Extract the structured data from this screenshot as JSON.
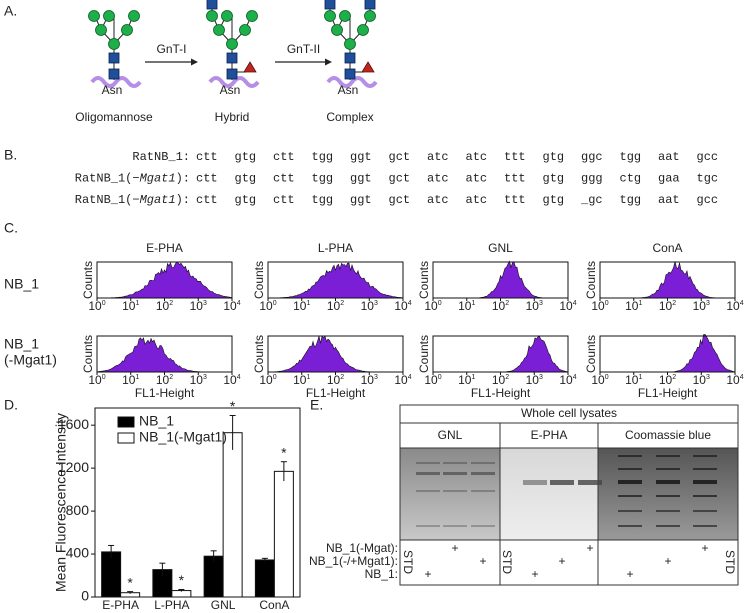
{
  "panel_a": {
    "label": "A.",
    "enzymes": [
      "GnT-I",
      "GnT-II"
    ],
    "structures": [
      {
        "name": "Oligomannose",
        "residue": "Asn"
      },
      {
        "name": "Hybrid",
        "residue": "Asn"
      },
      {
        "name": "Complex",
        "residue": "Asn"
      }
    ]
  },
  "panel_b": {
    "label": "B.",
    "altered_color": "#e0201b",
    "rows": [
      {
        "name": [
          "RatNB_1:"
        ],
        "codons": [
          "ctt",
          "gtg",
          "ctt",
          "tgg",
          "ggt",
          "gct",
          "atc",
          "atc",
          "ttt",
          "gtg",
          "ggc",
          "tgg",
          "aat",
          "gcc"
        ],
        "altered": []
      },
      {
        "name": [
          "RatNB_1(−",
          "Mgat1",
          "):"
        ],
        "codons": [
          "ctt",
          "gtg",
          "ctt",
          "tgg",
          "ggt",
          "gct",
          "atc",
          "atc",
          "ttt",
          "gtg"
        ],
        "altered": [
          "ggg",
          "ctg",
          "gaa",
          "tgc"
        ]
      },
      {
        "name": [
          "RatNB_1(−",
          "Mgat1",
          "):"
        ],
        "codons": [
          "ctt",
          "gtg",
          "ctt",
          "tgg",
          "ggt",
          "gct",
          "atc",
          "atc",
          "ttt",
          "gtg"
        ],
        "altered": [
          "_gc",
          "tgg",
          "aat",
          "gcc"
        ]
      }
    ]
  },
  "panel_c": {
    "label": "C.",
    "lectins": [
      "E-PHA",
      "L-PHA",
      "GNL",
      "ConA"
    ],
    "rows": [
      [
        "NB_1"
      ],
      [
        "NB_1",
        "(-Mgat1)"
      ]
    ],
    "y_label": "Counts",
    "x_label": "FL1-Height",
    "x_tick_base": "10",
    "x_tick_exponents": [
      0,
      1,
      2,
      3,
      4
    ],
    "color": "#7b1fd6"
  },
  "panel_d": {
    "label": "D.",
    "type": "bar",
    "y_label": "Mean Fluorescence Intensity",
    "categories": [
      "E-PHA",
      "L-PHA",
      "GNL",
      "ConA"
    ],
    "series": [
      {
        "name": "NB_1",
        "color": "#000000",
        "values": [
          420,
          255,
          380,
          345
        ],
        "errors": [
          60,
          60,
          50,
          15
        ]
      },
      {
        "name": "NB_1(-Mgat1)",
        "color": "#ffffff",
        "values": [
          40,
          60,
          1530,
          1170
        ],
        "errors": [
          10,
          10,
          160,
          90
        ],
        "significance_mark": "*"
      }
    ],
    "ylim": [
      0,
      1760
    ],
    "yticks": [
      0,
      400,
      800,
      1200,
      1600
    ]
  },
  "panel_e": {
    "label": "E.",
    "title": "Whole cell lysates",
    "stains": [
      "GNL",
      "E-PHA",
      "Coomassie blue"
    ],
    "standard": "STD",
    "rows": [
      {
        "label": "NB_1(-Mgat):",
        "mark": "+"
      },
      {
        "label": "NB_1(-/+Mgat1):",
        "mark": "+"
      },
      {
        "label": "NB_1:",
        "mark": "+"
      }
    ]
  }
}
